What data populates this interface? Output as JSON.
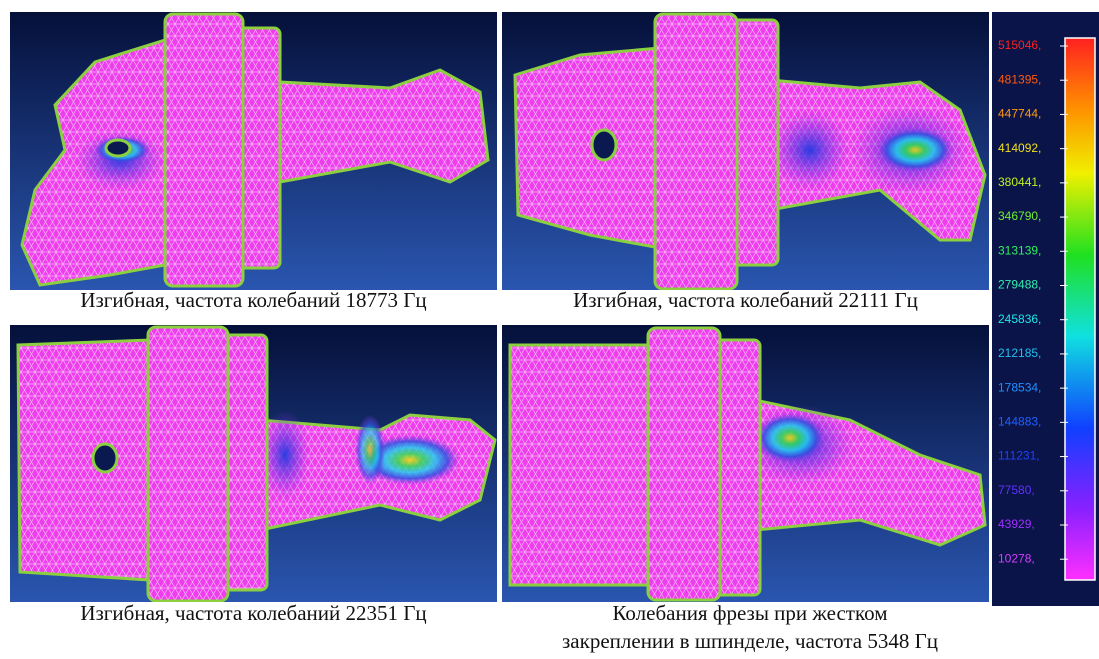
{
  "panels": [
    {
      "caption": [
        "Изгибная, частота колебаний 18773 Гц"
      ]
    },
    {
      "caption": [
        "Изгибная, частота колебаний 22111 Гц"
      ]
    },
    {
      "caption": [
        "Изгибная, частота колебаний 22351 Гц"
      ]
    },
    {
      "caption": [
        "Колебания фрезы при жестком",
        "закреплении в шпинделе, частота 5348 Гц"
      ]
    }
  ],
  "legend": {
    "labels": [
      "515046,",
      "481395,",
      "447744,",
      "414092,",
      "380441,",
      "346790,",
      "313139,",
      "279488,",
      "245836,",
      "212185,",
      "178534,",
      "144883,",
      "111231,",
      "77580,",
      "43929,",
      "10278,"
    ]
  }
}
